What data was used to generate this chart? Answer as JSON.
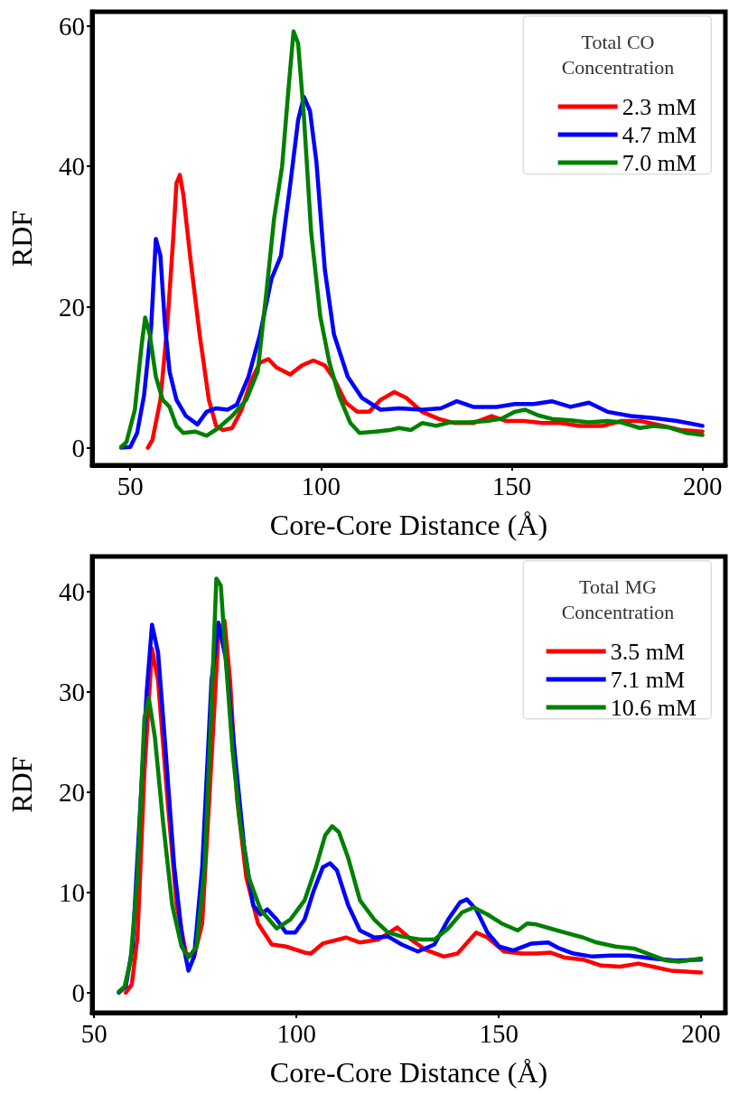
{
  "chart_data": [
    {
      "type": "line",
      "xlabel": "Core-Core Distance (Å)",
      "ylabel": "RDF",
      "legend_title": "Total CO\nConcentration",
      "legend": "top right",
      "grid": false,
      "marker": "none",
      "line_style": "solid",
      "xlim": [
        40,
        206
      ],
      "ylim": [
        -2.5,
        62
      ],
      "xticks": [
        50,
        100,
        150,
        200
      ],
      "yticks": [
        0,
        20,
        40,
        60
      ],
      "series": [
        {
          "name": "2.3 mM",
          "color": "#ff0000",
          "x": [
            54.6,
            55.8,
            57.9,
            59.7,
            61.2,
            62.1,
            63,
            63.9,
            65.8,
            68.2,
            70.6,
            72.5,
            74.3,
            76.7,
            79.2,
            81.6,
            84,
            86.2,
            88.3,
            91.9,
            95,
            98,
            101,
            103.4,
            106.5,
            109.5,
            112.6,
            115.6,
            119.2,
            122.3,
            126.5,
            130.8,
            135,
            139.9,
            144.7,
            148.4,
            153.2,
            158.1,
            162.9,
            167.8,
            173.9,
            178.7,
            183.6,
            189.7,
            194.5,
            200
          ],
          "values": [
            0,
            1.1,
            6.8,
            17.4,
            29.3,
            37.6,
            38.8,
            36,
            26.7,
            16,
            6.8,
            3.1,
            2.5,
            2.8,
            5.4,
            9.4,
            12.1,
            12.6,
            11.4,
            10.4,
            11.7,
            12.4,
            11.7,
            9.8,
            6.4,
            5.1,
            5.1,
            6.8,
            7.9,
            7.1,
            5.1,
            4.1,
            3.5,
            3.5,
            4.5,
            3.8,
            3.8,
            3.5,
            3.5,
            3.1,
            3.1,
            3.8,
            3.8,
            3.1,
            2.5,
            2.3
          ]
        },
        {
          "name": "4.7 mM",
          "color": "#0000ff",
          "x": [
            47.6,
            50,
            51.8,
            53.6,
            55.5,
            56.7,
            57.9,
            59.1,
            60.3,
            62.1,
            64.6,
            67.6,
            70,
            72.5,
            75.5,
            77.9,
            81,
            84,
            87,
            89.5,
            91.9,
            94,
            95.5,
            97.1,
            98.8,
            101,
            103.4,
            107,
            110.7,
            115.6,
            120.4,
            126.5,
            131.4,
            135.6,
            139.9,
            146,
            150.8,
            155.7,
            160.5,
            165.4,
            170.2,
            175.1,
            181.2,
            187.2,
            193.3,
            200
          ],
          "values": [
            0,
            0.1,
            2.1,
            7.4,
            17.4,
            29.7,
            27.3,
            17.4,
            10.8,
            6.8,
            4.5,
            3.3,
            5.1,
            5.6,
            5.4,
            6.1,
            10.1,
            16.1,
            24,
            27.3,
            37.3,
            46.6,
            49.9,
            47.9,
            40.6,
            25.3,
            16.1,
            10.1,
            7.1,
            5.4,
            5.6,
            5.4,
            5.6,
            6.6,
            5.8,
            5.8,
            6.2,
            6.2,
            6.6,
            5.8,
            6.4,
            5.1,
            4.5,
            4.2,
            3.8,
            3.1
          ]
        },
        {
          "name": "7.0 mM",
          "color": "#008000",
          "x": [
            47.6,
            49,
            51.2,
            53,
            53.9,
            55.1,
            56.7,
            58.5,
            60.3,
            62.1,
            63.9,
            67,
            70,
            73.1,
            76.7,
            80.4,
            83.4,
            85.8,
            87.7,
            89.8,
            91.5,
            92.8,
            94,
            95.5,
            97.4,
            99.8,
            102.2,
            104.7,
            107.7,
            110.1,
            114.4,
            118,
            120.4,
            123.5,
            126.5,
            130.2,
            133.8,
            138.7,
            143.5,
            147.2,
            150.8,
            153.5,
            156.9,
            160.5,
            165.4,
            170.2,
            175.1,
            178.7,
            183.6,
            187.2,
            190.9,
            195.7,
            200
          ],
          "values": [
            0.1,
            0.8,
            5.4,
            14.7,
            18.5,
            16.1,
            10.1,
            6.8,
            5.8,
            3.1,
            2.1,
            2.3,
            1.7,
            2.8,
            4.5,
            6.8,
            10.8,
            22.7,
            32.6,
            40,
            51.2,
            59.2,
            57.5,
            47.2,
            30.7,
            18.7,
            12.1,
            7.4,
            3.5,
            2.1,
            2.3,
            2.5,
            2.8,
            2.5,
            3.5,
            3.1,
            3.6,
            3.6,
            3.8,
            4.1,
            5.1,
            5.4,
            4.6,
            4.1,
            3.9,
            3.6,
            3.8,
            3.6,
            2.8,
            3.1,
            2.9,
            2.1,
            1.8
          ]
        }
      ]
    },
    {
      "type": "line",
      "xlabel": "Core-Core Distance (Å)",
      "ylabel": "RDF",
      "legend_title": "Total MG\nConcentration",
      "legend": "top right",
      "grid": false,
      "marker": "none",
      "line_style": "solid",
      "xlim": [
        49.5,
        206
      ],
      "ylim": [
        -2,
        43.5
      ],
      "xticks": [
        50,
        100,
        150,
        200
      ],
      "yticks": [
        0,
        10,
        20,
        30,
        40
      ],
      "series": [
        {
          "name": "3.5 mM",
          "color": "#ff0000",
          "x": [
            57.8,
            59.3,
            60.7,
            62.4,
            64.3,
            65.8,
            68.1,
            70.4,
            72.7,
            74.7,
            76.7,
            78.8,
            80.7,
            82.2,
            83.6,
            85.3,
            87.6,
            90.5,
            93.9,
            97.4,
            102,
            103.6,
            106.5,
            112.3,
            115.7,
            120.3,
            124.9,
            128.3,
            131.8,
            136.4,
            139.8,
            144.4,
            147.2,
            151.3,
            155.8,
            159.3,
            162.7,
            166.2,
            170.8,
            175.3,
            180,
            184.5,
            188,
            192.5,
            200
          ],
          "values": [
            0,
            0.8,
            5.5,
            21.8,
            34.3,
            31.1,
            19.4,
            8.7,
            3.9,
            3.6,
            6.9,
            21.8,
            35.7,
            37.1,
            31.1,
            19.4,
            11.5,
            6.9,
            4.8,
            4.6,
            4,
            3.9,
            4.9,
            5.5,
            5,
            5.3,
            6.5,
            5.3,
            4.3,
            3.6,
            3.9,
            6,
            5.5,
            4.1,
            3.9,
            3.9,
            4,
            3.5,
            3.3,
            2.7,
            2.6,
            2.9,
            2.6,
            2.2,
            2
          ]
        },
        {
          "name": "7.1 mM",
          "color": "#0000ff",
          "x": [
            56.1,
            57.8,
            59.5,
            61.2,
            63,
            64.3,
            65.8,
            67.5,
            69.8,
            71.9,
            73.3,
            74.7,
            76.7,
            79,
            80.7,
            82.5,
            84.7,
            87,
            89.3,
            91.1,
            92.8,
            95.1,
            97.4,
            99.7,
            102,
            104.2,
            106.5,
            108.3,
            110,
            112.8,
            115.7,
            119.2,
            122.6,
            126,
            130,
            134.1,
            137.5,
            140.4,
            142.1,
            144.4,
            147.2,
            150.1,
            153.6,
            158.1,
            162.2,
            165,
            168.5,
            173.1,
            177.6,
            182.2,
            188,
            193.7,
            200
          ],
          "values": [
            0,
            0.6,
            4.6,
            17.1,
            30.1,
            36.7,
            33.9,
            25,
            12.5,
            5,
            2.2,
            3.6,
            12.5,
            31.1,
            36.9,
            33.4,
            24.1,
            14.8,
            8.7,
            7.8,
            8.3,
            7.3,
            6,
            6,
            7.3,
            10.1,
            12.5,
            12.9,
            12.2,
            8.7,
            6.2,
            5.5,
            5.6,
            4.8,
            4.1,
            4.8,
            7.3,
            9,
            9.3,
            8.3,
            6,
            4.6,
            4.2,
            4.9,
            5,
            4.4,
            3.9,
            3.6,
            3.7,
            3.7,
            3.4,
            3.2,
            3.3
          ]
        },
        {
          "name": "10.6 mM",
          "color": "#008000",
          "x": [
            56.1,
            57.5,
            59,
            60.7,
            62.4,
            63.5,
            65,
            67,
            69.3,
            71.6,
            73.3,
            75.3,
            77.3,
            79,
            80.2,
            81.3,
            82.5,
            84.2,
            86,
            88.2,
            91.1,
            95.1,
            98.5,
            102,
            104.8,
            107.1,
            108.8,
            110.5,
            112.8,
            115.7,
            119.2,
            122.6,
            126,
            130.6,
            134.1,
            137.5,
            140.9,
            143.8,
            147.2,
            150.7,
            154.7,
            157,
            159.3,
            162.7,
            166.2,
            170.8,
            174.2,
            178.8,
            183.4,
            186.8,
            191.4,
            194.8,
            200
          ],
          "values": [
            0.1,
            0.6,
            3.2,
            11.5,
            27.3,
            29.4,
            25.5,
            17.1,
            8.7,
            4.6,
            3.5,
            4.6,
            12.5,
            28.7,
            41.3,
            40.6,
            33.4,
            24.1,
            17.1,
            11.5,
            8.3,
            6.4,
            7.3,
            9.2,
            12.5,
            15.7,
            16.6,
            16,
            13.4,
            9.2,
            7.3,
            6,
            5.6,
            5.3,
            5.3,
            6.4,
            8,
            8.5,
            7.8,
            6.9,
            6.2,
            6.9,
            6.8,
            6.4,
            6,
            5.5,
            5,
            4.6,
            4.4,
            3.9,
            3.2,
            3.1,
            3.4
          ]
        }
      ]
    }
  ]
}
